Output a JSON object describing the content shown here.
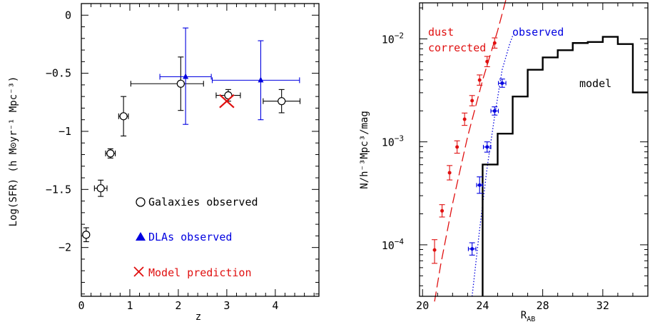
{
  "colors": {
    "black": "#000000",
    "blue": "#0000e0",
    "red": "#e01010"
  },
  "chart_data": [
    {
      "type": "scatter",
      "xlabel": "z",
      "ylabel": "Log(SFR) (h M⊙yr⁻¹ Mpc⁻³)",
      "xlim": [
        0,
        4.9
      ],
      "ylim": [
        -2.42,
        0.1
      ],
      "x_ticks": [
        0,
        1,
        2,
        3,
        4
      ],
      "y_ticks": [
        0,
        -0.5,
        -1,
        -1.5,
        -2
      ],
      "legend_position": "bottom-right",
      "series": [
        {
          "name": "Galaxies observed",
          "marker": "circle",
          "color": "#000000",
          "points": [
            {
              "x": 0.1,
              "y": -1.89,
              "xerr": [
                0.05,
                0.05
              ],
              "yerr": [
                0.06,
                0.06
              ]
            },
            {
              "x": 0.4,
              "y": -1.49,
              "xerr": [
                0.13,
                0.13
              ],
              "yerr": [
                0.07,
                0.07
              ]
            },
            {
              "x": 0.6,
              "y": -1.19,
              "xerr": [
                0.1,
                0.1
              ],
              "yerr": [
                0.04,
                0.04
              ]
            },
            {
              "x": 0.87,
              "y": -0.87,
              "xerr": [
                0.1,
                0.1
              ],
              "yerr": [
                0.17,
                0.17
              ]
            },
            {
              "x": 2.05,
              "y": -0.59,
              "xerr": [
                1.03,
                0.47
              ],
              "yerr": [
                0.23,
                0.23
              ]
            },
            {
              "x": 3.03,
              "y": -0.69,
              "xerr": [
                0.25,
                0.25
              ],
              "yerr": [
                0.05,
                0.05
              ]
            },
            {
              "x": 4.13,
              "y": -0.74,
              "xerr": [
                0.38,
                0.38
              ],
              "yerr": [
                0.1,
                0.1
              ]
            }
          ]
        },
        {
          "name": "DLAs observed",
          "marker": "triangle",
          "color": "#0000e0",
          "points": [
            {
              "x": 2.15,
              "y": -0.53,
              "xerr": [
                0.53,
                0.53
              ],
              "yerr": [
                0.41,
                0.42
              ]
            },
            {
              "x": 3.7,
              "y": -0.56,
              "xerr": [
                1.0,
                0.8
              ],
              "yerr": [
                0.34,
                0.34
              ]
            }
          ]
        },
        {
          "name": "Model prediction",
          "marker": "cross",
          "color": "#e01010",
          "points": [
            {
              "x": 3.0,
              "y": -0.74
            }
          ]
        }
      ]
    },
    {
      "type": "line",
      "xlabel": "R",
      "xlabel_sub": "AB",
      "ylabel": "N/h⁻³Mpc³/mag",
      "xlim": [
        19.8,
        35
      ],
      "ylim_log10": [
        -4.5,
        -1.65
      ],
      "x_ticks": [
        20,
        24,
        28,
        32
      ],
      "y_ticks": [
        {
          "value": -4,
          "base": "10",
          "exp": "−4"
        },
        {
          "value": -3,
          "base": "10",
          "exp": "−3"
        },
        {
          "value": -2,
          "base": "10",
          "exp": "−2"
        }
      ],
      "annotations": [
        {
          "text": "dust",
          "color": "#e01010"
        },
        {
          "text": "corrected",
          "color": "#e01010"
        },
        {
          "text": "observed",
          "color": "#0000e0"
        },
        {
          "text": "model",
          "color": "#000000"
        }
      ],
      "series": [
        {
          "name": "dust corrected",
          "color": "#e01010",
          "style": "dashed",
          "curve": [
            [
              20.8,
              -4.55
            ],
            [
              21.2,
              -4.2
            ],
            [
              22.0,
              -3.6
            ],
            [
              23.0,
              -2.95
            ],
            [
              24.0,
              -2.4
            ],
            [
              25.0,
              -1.92
            ],
            [
              25.55,
              -1.62
            ]
          ],
          "points": [
            {
              "x": 20.8,
              "y": -4.05,
              "yerr": [
                0.13,
                0.1
              ]
            },
            {
              "x": 21.3,
              "y": -3.67,
              "yerr": [
                0.06,
                0.06
              ]
            },
            {
              "x": 21.8,
              "y": -3.3,
              "yerr": [
                0.07,
                0.07
              ]
            },
            {
              "x": 22.3,
              "y": -3.05,
              "yerr": [
                0.06,
                0.06
              ]
            },
            {
              "x": 22.8,
              "y": -2.78,
              "yerr": [
                0.06,
                0.06
              ]
            },
            {
              "x": 23.3,
              "y": -2.6,
              "yerr": [
                0.05,
                0.05
              ]
            },
            {
              "x": 23.8,
              "y": -2.4,
              "yerr": [
                0.05,
                0.05
              ]
            },
            {
              "x": 24.3,
              "y": -2.22,
              "yerr": [
                0.05,
                0.05
              ]
            },
            {
              "x": 24.8,
              "y": -2.04,
              "yerr": [
                0.05,
                0.05
              ]
            }
          ]
        },
        {
          "name": "observed",
          "color": "#0000e0",
          "style": "dotted",
          "curve": [
            [
              23.3,
              -4.5
            ],
            [
              23.8,
              -3.85
            ],
            [
              24.3,
              -3.25
            ],
            [
              24.8,
              -2.75
            ],
            [
              25.3,
              -2.3
            ],
            [
              25.8,
              -2.05
            ],
            [
              26.0,
              -1.97
            ]
          ],
          "points": [
            {
              "x": 23.3,
              "y": -4.04,
              "xerr": [
                0.25,
                0.25
              ],
              "yerr": [
                0.06,
                0.06
              ]
            },
            {
              "x": 23.8,
              "y": -3.42,
              "xerr": [
                0.2,
                0.2
              ],
              "yerr": [
                0.08,
                0.08
              ]
            },
            {
              "x": 24.3,
              "y": -3.05,
              "xerr": [
                0.25,
                0.25
              ],
              "yerr": [
                0.05,
                0.05
              ]
            },
            {
              "x": 24.8,
              "y": -2.7,
              "xerr": [
                0.25,
                0.25
              ],
              "yerr": [
                0.04,
                0.04
              ]
            },
            {
              "x": 25.3,
              "y": -2.43,
              "xerr": [
                0.25,
                0.25
              ],
              "yerr": [
                0.04,
                0.04
              ]
            }
          ]
        },
        {
          "name": "model",
          "color": "#000000",
          "style": "step",
          "step_edges": [
            24.0,
            25.0,
            26.0,
            27.0,
            28.0,
            29.0,
            30.0,
            31.0,
            32.0,
            33.0,
            34.0,
            35.0
          ],
          "step_values": [
            -3.22,
            -2.92,
            -2.56,
            -2.3,
            -2.18,
            -2.11,
            -2.04,
            -2.03,
            -1.98,
            -2.05,
            -2.52
          ]
        }
      ]
    }
  ]
}
